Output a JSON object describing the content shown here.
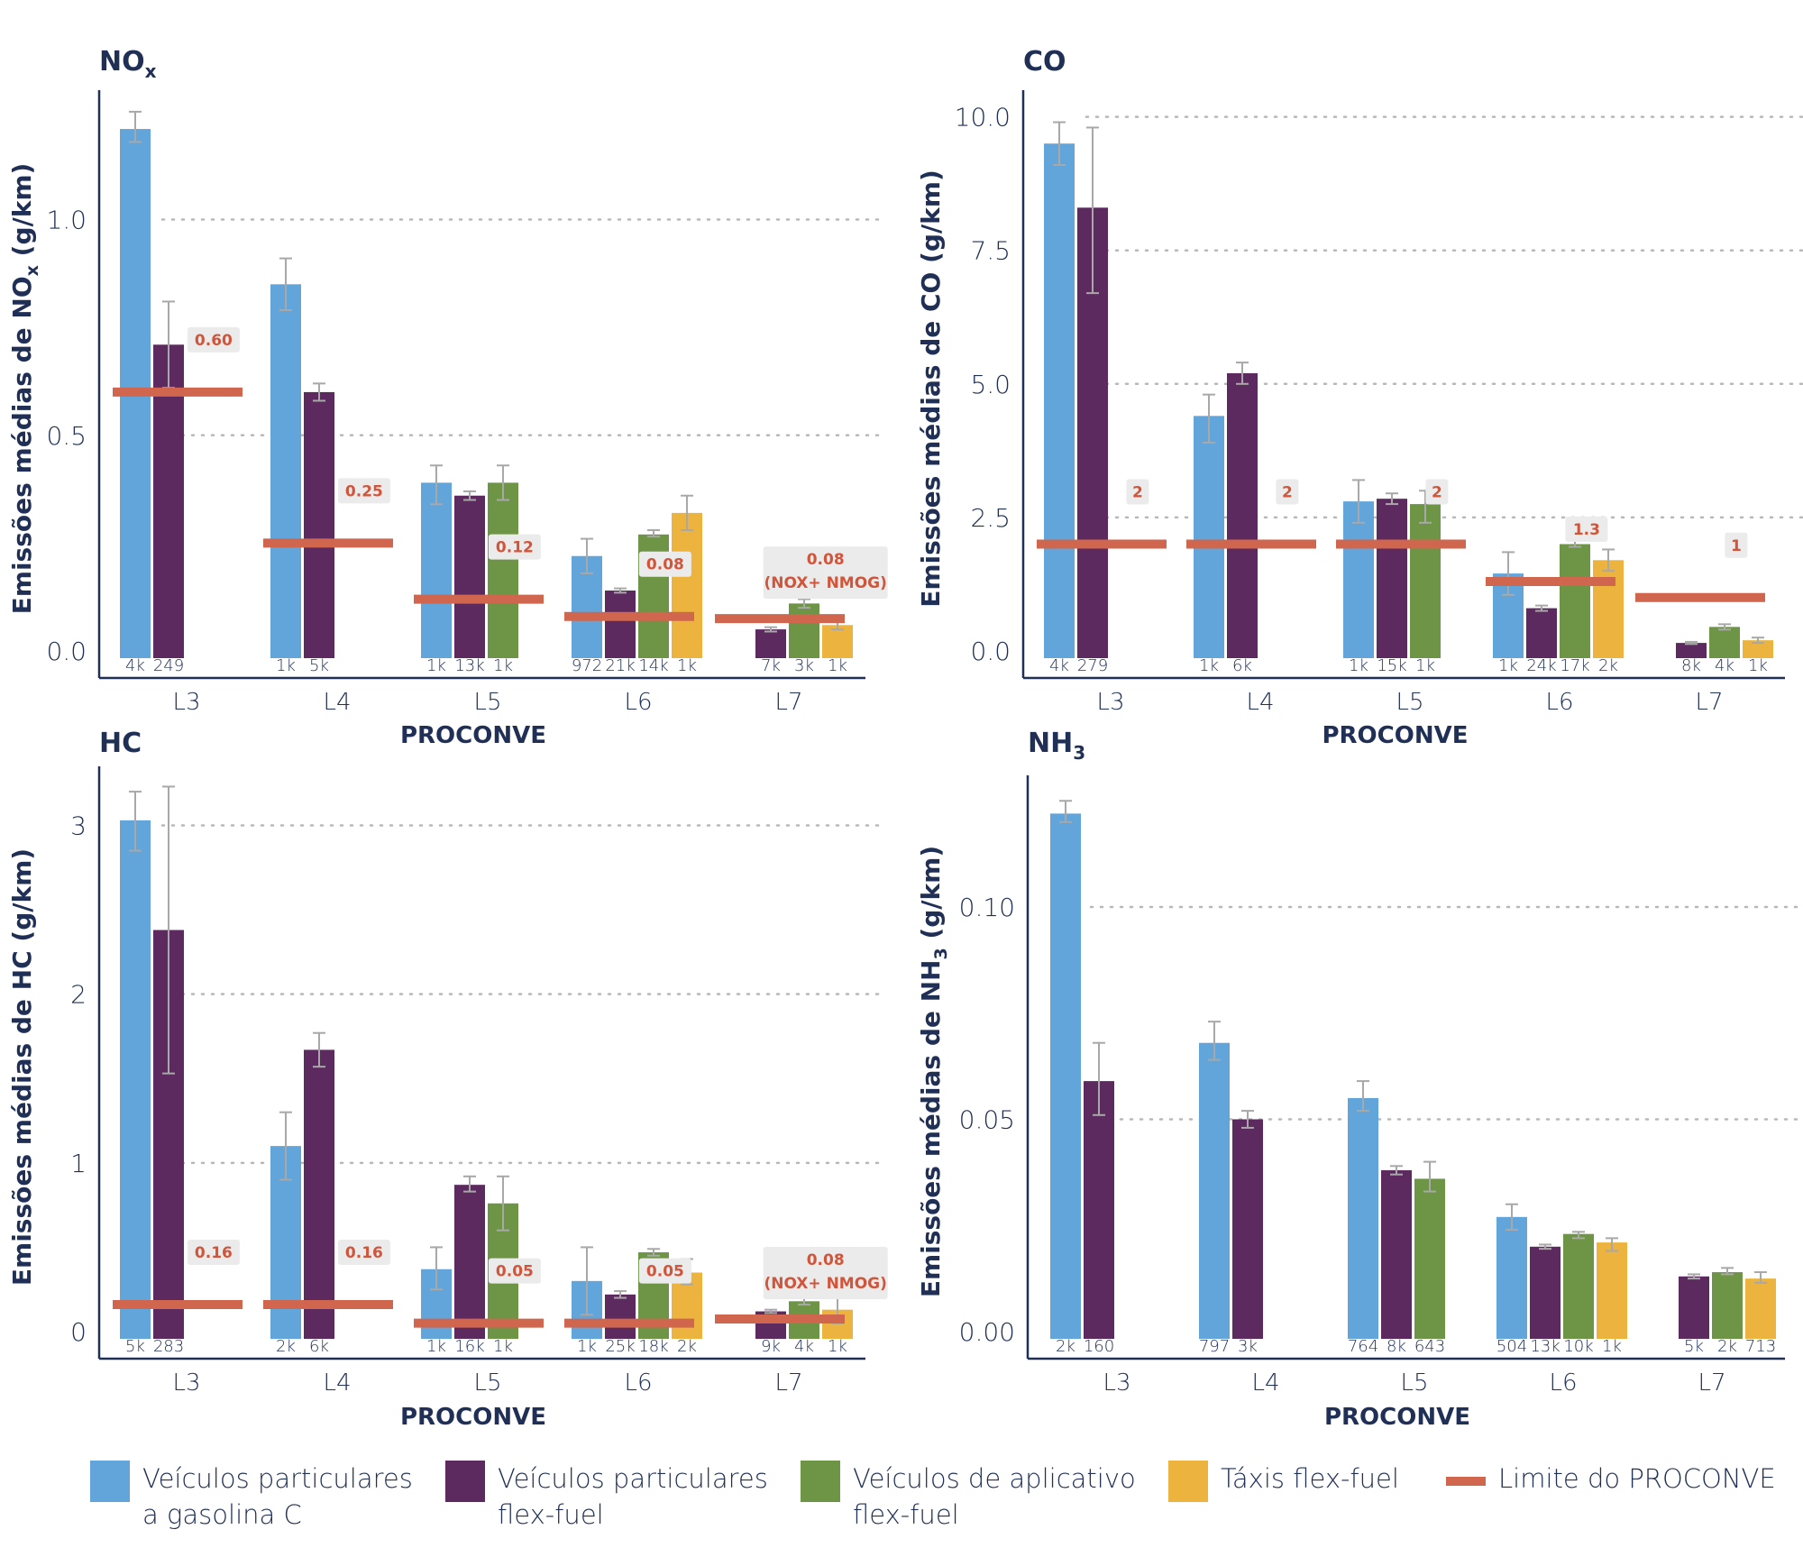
{
  "colors": {
    "gasolina": "#62a5db",
    "flex": "#5c2a5e",
    "aplicativo": "#6e9546",
    "taxi": "#ecb43f",
    "limite": "#d0664d",
    "axis": "#1f2f55",
    "limit_label_text": "#d0553a",
    "limit_label_bg": "#ebebeb"
  },
  "legend": [
    {
      "key": "gasolina",
      "label_line1": "Veículos particulares",
      "label_line2": "a gasolina C"
    },
    {
      "key": "flex",
      "label_line1": "Veículos particulares",
      "label_line2": "flex-fuel"
    },
    {
      "key": "aplicativo",
      "label_line1": "Veículos de aplicativo",
      "label_line2": "flex-fuel"
    },
    {
      "key": "taxi",
      "label_line1": "Táxis flex-fuel",
      "label_line2": ""
    },
    {
      "key": "limite",
      "label_line1": "Limite do PROCONVE",
      "label_line2": ""
    }
  ],
  "chart_data": [
    {
      "id": "nox",
      "type": "bar",
      "title": "NO",
      "title_sub": "x",
      "ylabel": "Emissões médias de NO",
      "ylabel_sub": "x",
      "ylabel_suffix": " (g/km)",
      "xlabel": "PROCONVE",
      "ylim": [
        0,
        1.3
      ],
      "yticks": [
        0,
        0.5,
        1.0
      ],
      "ytick_labels": [
        "0.0",
        "0.5",
        "1.0"
      ],
      "categories": [
        "L3",
        "L4",
        "L5",
        "L6",
        "L7"
      ],
      "groups": [
        {
          "bars": [
            {
              "series": "gasolina",
              "value": 1.21,
              "err": [
                1.18,
                1.25
              ],
              "n": "4k"
            },
            {
              "series": "flex",
              "value": 0.71,
              "err": [
                0.61,
                0.81
              ],
              "n": "249"
            }
          ],
          "limit": {
            "value": 0.6,
            "label": [
              "0.60"
            ]
          }
        },
        {
          "bars": [
            {
              "series": "gasolina",
              "value": 0.85,
              "err": [
                0.79,
                0.91
              ],
              "n": "1k"
            },
            {
              "series": "flex",
              "value": 0.6,
              "err": [
                0.58,
                0.62
              ],
              "n": "5k"
            }
          ],
          "limit": {
            "value": 0.25,
            "label": [
              "0.25"
            ]
          }
        },
        {
          "bars": [
            {
              "series": "gasolina",
              "value": 0.39,
              "err": [
                0.34,
                0.43
              ],
              "n": "1k"
            },
            {
              "series": "flex",
              "value": 0.36,
              "err": [
                0.35,
                0.37
              ],
              "n": "13k"
            },
            {
              "series": "aplicativo",
              "value": 0.39,
              "err": [
                0.35,
                0.43
              ],
              "n": "1k"
            }
          ],
          "limit": {
            "value": 0.12,
            "label": [
              "0.12"
            ]
          }
        },
        {
          "bars": [
            {
              "series": "gasolina",
              "value": 0.22,
              "err": [
                0.18,
                0.26
              ],
              "n": "972"
            },
            {
              "series": "flex",
              "value": 0.14,
              "err": [
                0.135,
                0.145
              ],
              "n": "21k"
            },
            {
              "series": "aplicativo",
              "value": 0.27,
              "err": [
                0.265,
                0.28
              ],
              "n": "14k"
            },
            {
              "series": "taxi",
              "value": 0.32,
              "err": [
                0.28,
                0.36
              ],
              "n": "1k"
            }
          ],
          "limit": {
            "value": 0.08,
            "label": [
              "0.08"
            ]
          }
        },
        {
          "bars": [
            {
              "series": "flex",
              "value": 0.05,
              "err": [
                0.045,
                0.055
              ],
              "n": "7k"
            },
            {
              "series": "aplicativo",
              "value": 0.11,
              "err": [
                0.1,
                0.12
              ],
              "n": "3k"
            },
            {
              "series": "taxi",
              "value": 0.06,
              "err": [
                0.05,
                0.07
              ],
              "n": "1k"
            }
          ],
          "limit": {
            "value": 0.075,
            "label": [
              "0.08",
              "(NOX+ NMOG)"
            ]
          }
        }
      ]
    },
    {
      "id": "co",
      "type": "bar",
      "title": "CO",
      "title_sub": "",
      "ylabel": "Emissões médias de CO",
      "ylabel_sub": "",
      "ylabel_suffix": " (g/km)",
      "xlabel": "PROCONVE",
      "ylim": [
        0,
        10.5
      ],
      "yticks": [
        0,
        2.5,
        5.0,
        7.5,
        10.0
      ],
      "ytick_labels": [
        "0.0",
        "2.5",
        "5.0",
        "7.5",
        "10.0"
      ],
      "categories": [
        "L3",
        "L4",
        "L5",
        "L6",
        "L7"
      ],
      "groups": [
        {
          "bars": [
            {
              "series": "gasolina",
              "value": 9.5,
              "err": [
                9.1,
                9.9
              ],
              "n": "4k"
            },
            {
              "series": "flex",
              "value": 8.3,
              "err": [
                6.7,
                9.8
              ],
              "n": "279"
            }
          ],
          "limit": {
            "value": 2.0,
            "label": [
              "2"
            ]
          }
        },
        {
          "bars": [
            {
              "series": "gasolina",
              "value": 4.4,
              "err": [
                3.9,
                4.8
              ],
              "n": "1k"
            },
            {
              "series": "flex",
              "value": 5.2,
              "err": [
                5.0,
                5.4
              ],
              "n": "6k"
            }
          ],
          "limit": {
            "value": 2.0,
            "label": [
              "2"
            ]
          }
        },
        {
          "bars": [
            {
              "series": "gasolina",
              "value": 2.8,
              "err": [
                2.4,
                3.2
              ],
              "n": "1k"
            },
            {
              "series": "flex",
              "value": 2.85,
              "err": [
                2.75,
                2.95
              ],
              "n": "15k"
            },
            {
              "series": "aplicativo",
              "value": 2.75,
              "err": [
                2.4,
                3.0
              ],
              "n": "1k"
            }
          ],
          "limit": {
            "value": 2.0,
            "label": [
              "2"
            ]
          }
        },
        {
          "bars": [
            {
              "series": "gasolina",
              "value": 1.45,
              "err": [
                1.05,
                1.85
              ],
              "n": "1k"
            },
            {
              "series": "flex",
              "value": 0.8,
              "err": [
                0.75,
                0.85
              ],
              "n": "24k"
            },
            {
              "series": "aplicativo",
              "value": 2.0,
              "err": [
                1.95,
                2.1
              ],
              "n": "17k"
            },
            {
              "series": "taxi",
              "value": 1.7,
              "err": [
                1.5,
                1.9
              ],
              "n": "2k"
            }
          ],
          "limit": {
            "value": 1.3,
            "label": [
              "1.3"
            ]
          }
        },
        {
          "bars": [
            {
              "series": "flex",
              "value": 0.15,
              "err": [
                0.13,
                0.17
              ],
              "n": "8k"
            },
            {
              "series": "aplicativo",
              "value": 0.45,
              "err": [
                0.4,
                0.5
              ],
              "n": "4k"
            },
            {
              "series": "taxi",
              "value": 0.2,
              "err": [
                0.15,
                0.25
              ],
              "n": "1k"
            }
          ],
          "limit": {
            "value": 1.0,
            "label": [
              "1"
            ]
          }
        }
      ]
    },
    {
      "id": "hc",
      "type": "bar",
      "title": "HC",
      "title_sub": "",
      "ylabel": "Emissões médias de HC",
      "ylabel_sub": "",
      "ylabel_suffix": " (g/km)",
      "xlabel": "PROCONVE",
      "ylim": [
        0,
        3.35
      ],
      "yticks": [
        0,
        1,
        2,
        3
      ],
      "ytick_labels": [
        "0",
        "1",
        "2",
        "3"
      ],
      "categories": [
        "L3",
        "L4",
        "L5",
        "L6",
        "L7"
      ],
      "groups": [
        {
          "bars": [
            {
              "series": "gasolina",
              "value": 3.03,
              "err": [
                2.85,
                3.2
              ],
              "n": "5k"
            },
            {
              "series": "flex",
              "value": 2.38,
              "err": [
                1.53,
                3.23
              ],
              "n": "283"
            }
          ],
          "limit": {
            "value": 0.16,
            "label": [
              "0.16"
            ]
          }
        },
        {
          "bars": [
            {
              "series": "gasolina",
              "value": 1.1,
              "err": [
                0.9,
                1.3
              ],
              "n": "2k"
            },
            {
              "series": "flex",
              "value": 1.67,
              "err": [
                1.57,
                1.77
              ],
              "n": "6k"
            }
          ],
          "limit": {
            "value": 0.16,
            "label": [
              "0.16"
            ]
          }
        },
        {
          "bars": [
            {
              "series": "gasolina",
              "value": 0.37,
              "err": [
                0.25,
                0.5
              ],
              "n": "1k"
            },
            {
              "series": "flex",
              "value": 0.87,
              "err": [
                0.83,
                0.92
              ],
              "n": "16k"
            },
            {
              "series": "aplicativo",
              "value": 0.76,
              "err": [
                0.6,
                0.92
              ],
              "n": "1k"
            }
          ],
          "limit": {
            "value": 0.05,
            "label": [
              "0.05"
            ]
          }
        },
        {
          "bars": [
            {
              "series": "gasolina",
              "value": 0.3,
              "err": [
                0.1,
                0.5
              ],
              "n": "1k"
            },
            {
              "series": "flex",
              "value": 0.22,
              "err": [
                0.2,
                0.24
              ],
              "n": "25k"
            },
            {
              "series": "aplicativo",
              "value": 0.47,
              "err": [
                0.45,
                0.49
              ],
              "n": "18k"
            },
            {
              "series": "taxi",
              "value": 0.35,
              "err": [
                0.28,
                0.43
              ],
              "n": "2k"
            }
          ],
          "limit": {
            "value": 0.05,
            "label": [
              "0.05"
            ]
          }
        },
        {
          "bars": [
            {
              "series": "flex",
              "value": 0.12,
              "err": [
                0.11,
                0.13
              ],
              "n": "9k"
            },
            {
              "series": "aplicativo",
              "value": 0.18,
              "err": [
                0.16,
                0.2
              ],
              "n": "4k"
            },
            {
              "series": "taxi",
              "value": 0.13,
              "err": [
                0.05,
                0.22
              ],
              "n": "1k"
            }
          ],
          "limit": {
            "value": 0.075,
            "label": [
              "0.08",
              "(NOX+ NMOG)"
            ]
          }
        }
      ]
    },
    {
      "id": "nh3",
      "type": "bar",
      "title": "NH",
      "title_sub": "3",
      "ylabel": "Emissões médias de NH",
      "ylabel_sub": "3",
      "ylabel_suffix": " (g/km)",
      "xlabel": "PROCONVE",
      "ylim": [
        0,
        0.131
      ],
      "yticks": [
        0,
        0.05,
        0.1
      ],
      "ytick_labels": [
        "0.00",
        "0.05",
        "0.10"
      ],
      "categories": [
        "L3",
        "L4",
        "L5",
        "L6",
        "L7"
      ],
      "groups": [
        {
          "bars": [
            {
              "series": "gasolina",
              "value": 0.122,
              "err": [
                0.12,
                0.125
              ],
              "n": "2k"
            },
            {
              "series": "flex",
              "value": 0.059,
              "err": [
                0.051,
                0.068
              ],
              "n": "160"
            }
          ]
        },
        {
          "bars": [
            {
              "series": "gasolina",
              "value": 0.068,
              "err": [
                0.064,
                0.073
              ],
              "n": "797"
            },
            {
              "series": "flex",
              "value": 0.05,
              "err": [
                0.048,
                0.052
              ],
              "n": "3k"
            }
          ]
        },
        {
          "bars": [
            {
              "series": "gasolina",
              "value": 0.055,
              "err": [
                0.052,
                0.059
              ],
              "n": "764"
            },
            {
              "series": "flex",
              "value": 0.038,
              "err": [
                0.037,
                0.039
              ],
              "n": "8k"
            },
            {
              "series": "aplicativo",
              "value": 0.036,
              "err": [
                0.033,
                0.04
              ],
              "n": "643"
            }
          ]
        },
        {
          "bars": [
            {
              "series": "gasolina",
              "value": 0.027,
              "err": [
                0.024,
                0.03
              ],
              "n": "504"
            },
            {
              "series": "flex",
              "value": 0.02,
              "err": [
                0.0195,
                0.0205
              ],
              "n": "13k"
            },
            {
              "series": "aplicativo",
              "value": 0.023,
              "err": [
                0.022,
                0.0235
              ],
              "n": "10k"
            },
            {
              "series": "taxi",
              "value": 0.021,
              "err": [
                0.019,
                0.022
              ],
              "n": "1k"
            }
          ]
        },
        {
          "bars": [
            {
              "series": "flex",
              "value": 0.013,
              "err": [
                0.0125,
                0.0135
              ],
              "n": "5k"
            },
            {
              "series": "aplicativo",
              "value": 0.014,
              "err": [
                0.0135,
                0.015
              ],
              "n": "2k"
            },
            {
              "series": "taxi",
              "value": 0.0125,
              "err": [
                0.0115,
                0.014
              ],
              "n": "713"
            }
          ]
        }
      ]
    }
  ]
}
